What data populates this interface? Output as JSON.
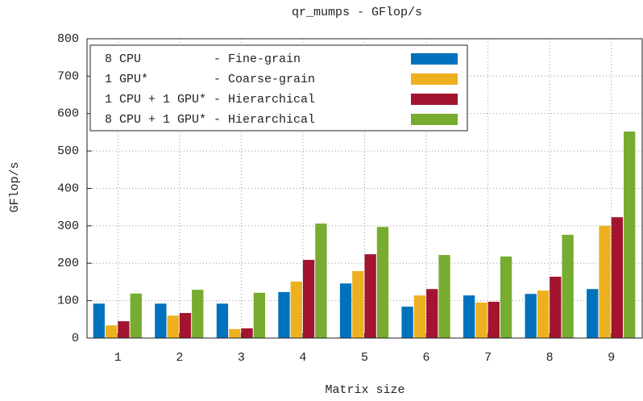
{
  "chart_data": {
    "type": "bar",
    "title": "qr_mumps - GFlop/s",
    "x_label": "Matrix size",
    "y_label": "GFlop/s",
    "categories": [
      "1",
      "2",
      "3",
      "4",
      "5",
      "6",
      "7",
      "8",
      "9"
    ],
    "series": [
      {
        "name": "8 CPU          - Fine-grain",
        "color": "#0072bd",
        "values": [
          92,
          92,
          92,
          123,
          146,
          84,
          114,
          118,
          131
        ]
      },
      {
        "name": "1 GPU*         - Coarse-grain",
        "color": "#edb120",
        "values": [
          34,
          60,
          24,
          151,
          179,
          114,
          95,
          127,
          300
        ]
      },
      {
        "name": "1 CPU + 1 GPU* - Hierarchical",
        "color": "#a2142f",
        "values": [
          45,
          67,
          26,
          209,
          224,
          131,
          97,
          164,
          323
        ]
      },
      {
        "name": "8 CPU + 1 GPU* - Hierarchical",
        "color": "#77ac30",
        "values": [
          119,
          129,
          121,
          306,
          297,
          222,
          218,
          276,
          552
        ]
      }
    ],
    "ylim": [
      0,
      800
    ],
    "yticks": [
      0,
      100,
      200,
      300,
      400,
      500,
      600,
      700,
      800
    ],
    "grid": true,
    "legend": "upper left"
  }
}
